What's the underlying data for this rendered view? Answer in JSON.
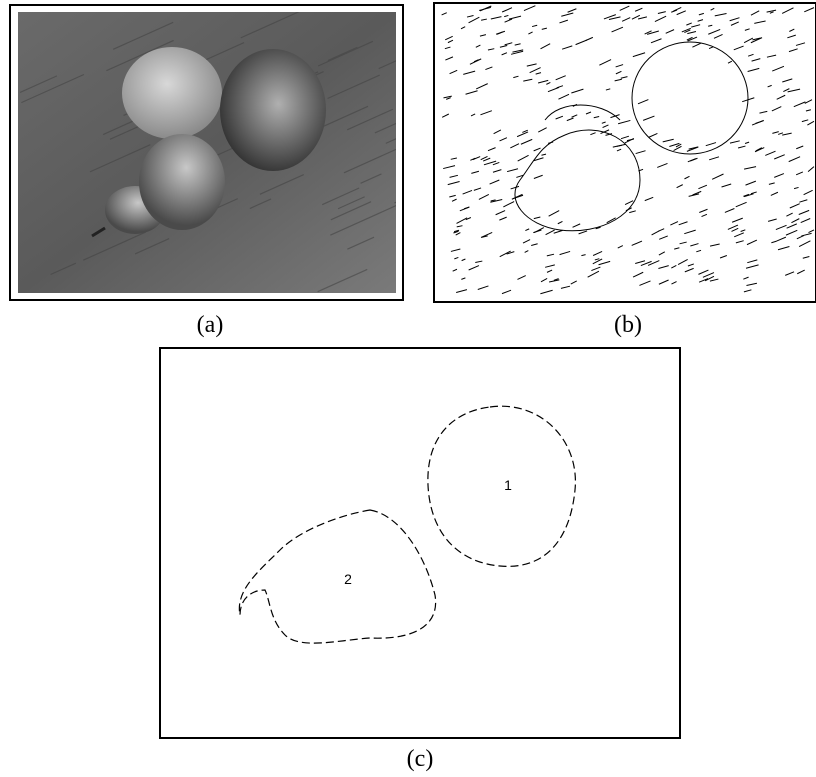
{
  "figure": {
    "panels": [
      {
        "caption": "(a)"
      },
      {
        "caption": "(b)"
      },
      {
        "caption": "(c)",
        "regions": [
          "1",
          "2"
        ]
      }
    ]
  }
}
